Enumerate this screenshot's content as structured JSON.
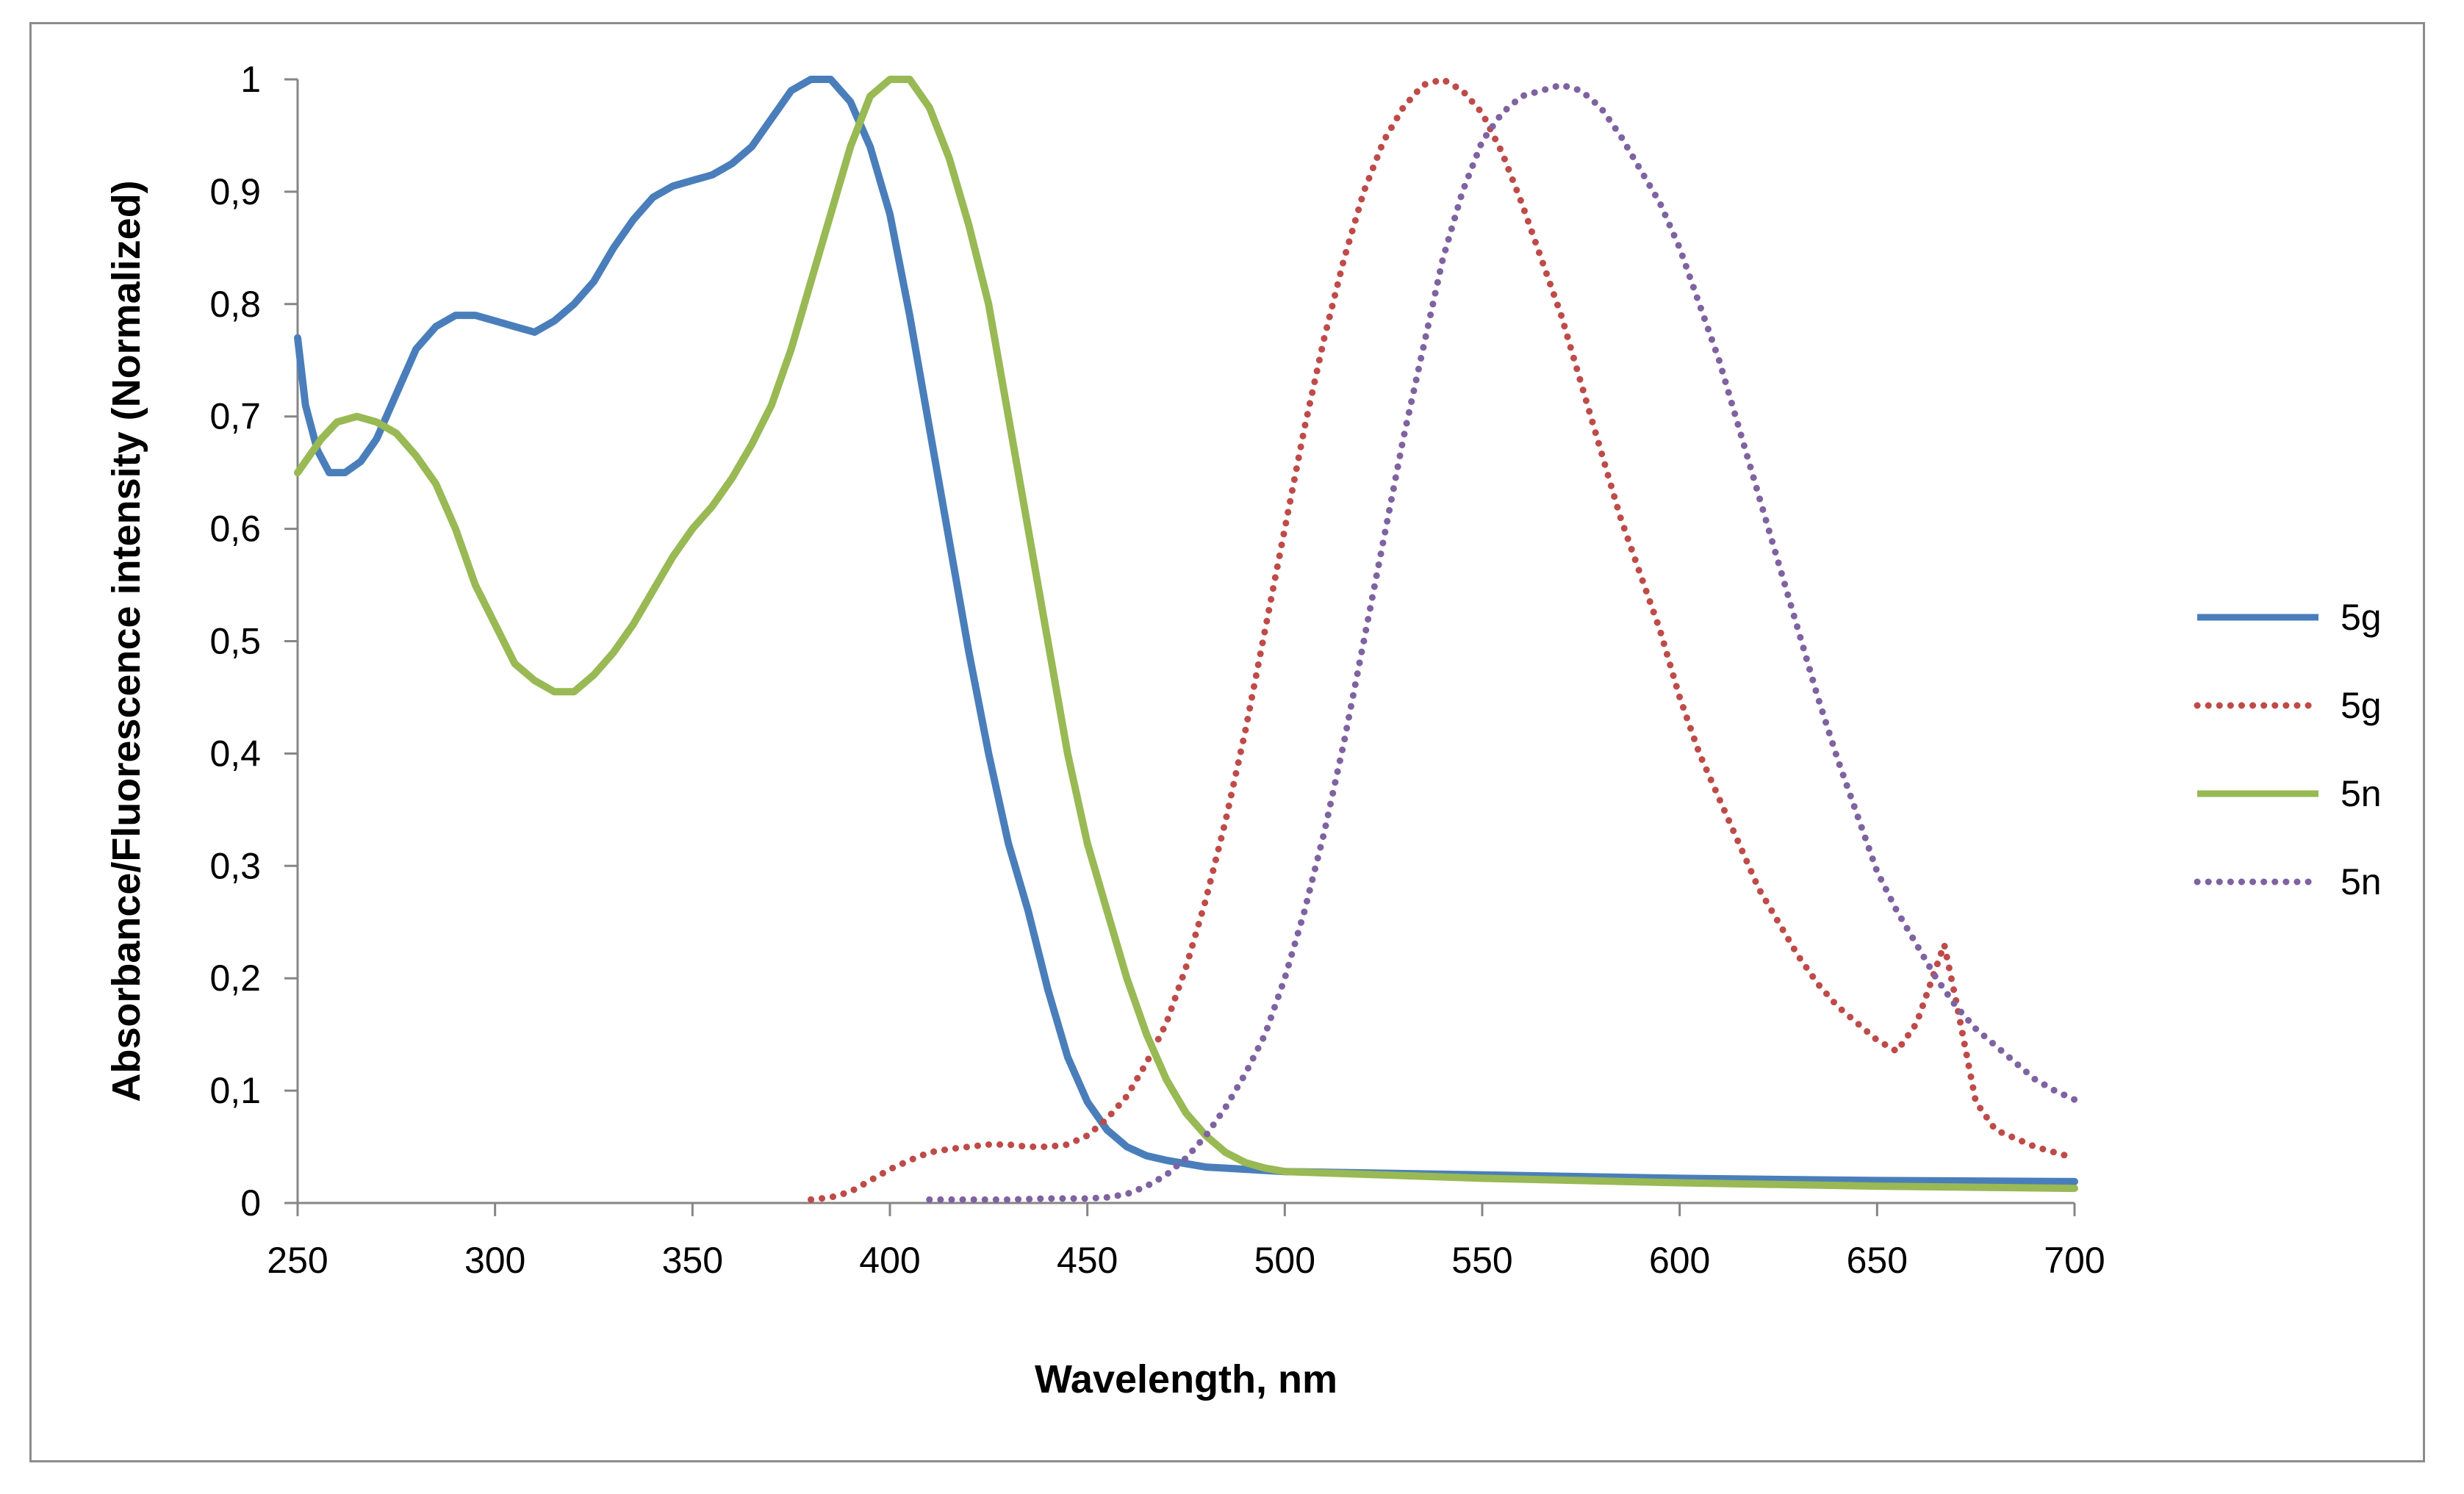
{
  "chart_data": {
    "type": "line",
    "title": "",
    "xlabel": "Wavelength, nm",
    "ylabel": "Absorbance/Fluorescence  intensity (Normalized)",
    "xlim": [
      250,
      700
    ],
    "ylim": [
      0,
      1
    ],
    "x_ticks": [
      "250",
      "300",
      "350",
      "400",
      "450",
      "500",
      "550",
      "600",
      "650",
      "700"
    ],
    "y_ticks": [
      "0",
      "0,1",
      "0,2",
      "0,3",
      "0,4",
      "0,5",
      "0,6",
      "0,7",
      "0,8",
      "0,9",
      "1"
    ],
    "grid": false,
    "legend_position": "right",
    "series": [
      {
        "name": "5g",
        "style": "solid",
        "color": "#4a7ebb",
        "x": [
          250,
          252,
          255,
          258,
          262,
          266,
          270,
          275,
          280,
          285,
          290,
          295,
          300,
          305,
          310,
          315,
          320,
          325,
          330,
          335,
          340,
          345,
          350,
          355,
          360,
          365,
          370,
          375,
          380,
          385,
          390,
          395,
          400,
          405,
          410,
          415,
          420,
          425,
          430,
          435,
          440,
          445,
          450,
          455,
          460,
          465,
          470,
          480,
          490,
          500,
          550,
          600,
          650,
          700
        ],
        "y": [
          0.77,
          0.71,
          0.67,
          0.65,
          0.65,
          0.66,
          0.68,
          0.72,
          0.76,
          0.78,
          0.79,
          0.79,
          0.785,
          0.78,
          0.775,
          0.785,
          0.8,
          0.82,
          0.85,
          0.875,
          0.895,
          0.905,
          0.91,
          0.915,
          0.925,
          0.94,
          0.965,
          0.99,
          1.0,
          1.0,
          0.98,
          0.94,
          0.88,
          0.79,
          0.69,
          0.59,
          0.49,
          0.4,
          0.32,
          0.26,
          0.19,
          0.13,
          0.09,
          0.065,
          0.05,
          0.042,
          0.038,
          0.032,
          0.03,
          0.028,
          0.025,
          0.022,
          0.02,
          0.019
        ]
      },
      {
        "name": "5g",
        "style": "dotted",
        "color": "#be4b48",
        "x": [
          380,
          385,
          390,
          395,
          400,
          405,
          410,
          415,
          420,
          425,
          430,
          435,
          440,
          445,
          450,
          455,
          460,
          465,
          470,
          475,
          480,
          485,
          490,
          495,
          500,
          505,
          510,
          515,
          520,
          525,
          530,
          535,
          540,
          545,
          550,
          555,
          560,
          565,
          570,
          575,
          580,
          585,
          590,
          595,
          600,
          605,
          610,
          615,
          620,
          625,
          630,
          635,
          640,
          645,
          650,
          655,
          660,
          665,
          667,
          670,
          675,
          680,
          690,
          700
        ],
        "y": [
          0.003,
          0.005,
          0.01,
          0.02,
          0.03,
          0.038,
          0.045,
          0.048,
          0.05,
          0.052,
          0.052,
          0.05,
          0.05,
          0.052,
          0.06,
          0.075,
          0.095,
          0.125,
          0.16,
          0.21,
          0.27,
          0.34,
          0.42,
          0.51,
          0.6,
          0.69,
          0.77,
          0.84,
          0.9,
          0.945,
          0.975,
          0.995,
          1.0,
          0.99,
          0.97,
          0.935,
          0.89,
          0.84,
          0.79,
          0.73,
          0.67,
          0.61,
          0.56,
          0.51,
          0.45,
          0.4,
          0.36,
          0.32,
          0.28,
          0.25,
          0.22,
          0.195,
          0.175,
          0.16,
          0.145,
          0.135,
          0.16,
          0.21,
          0.23,
          0.18,
          0.09,
          0.065,
          0.05,
          0.04
        ]
      },
      {
        "name": "5n",
        "style": "solid",
        "color": "#98b954",
        "x": [
          250,
          253,
          256,
          260,
          265,
          270,
          275,
          280,
          285,
          290,
          295,
          300,
          305,
          310,
          315,
          320,
          325,
          330,
          335,
          340,
          345,
          350,
          355,
          360,
          365,
          370,
          375,
          380,
          385,
          390,
          395,
          400,
          405,
          410,
          415,
          420,
          425,
          430,
          435,
          440,
          445,
          450,
          455,
          460,
          465,
          470,
          475,
          480,
          485,
          490,
          495,
          500,
          550,
          600,
          650,
          700
        ],
        "y": [
          0.65,
          0.665,
          0.68,
          0.695,
          0.7,
          0.695,
          0.685,
          0.665,
          0.64,
          0.6,
          0.55,
          0.515,
          0.48,
          0.465,
          0.455,
          0.455,
          0.47,
          0.49,
          0.515,
          0.545,
          0.575,
          0.6,
          0.62,
          0.645,
          0.675,
          0.71,
          0.76,
          0.82,
          0.88,
          0.94,
          0.985,
          1.0,
          1.0,
          0.975,
          0.93,
          0.87,
          0.8,
          0.7,
          0.6,
          0.5,
          0.4,
          0.32,
          0.26,
          0.2,
          0.15,
          0.11,
          0.08,
          0.06,
          0.045,
          0.036,
          0.031,
          0.028,
          0.022,
          0.018,
          0.015,
          0.013
        ]
      },
      {
        "name": "5n",
        "style": "dotted",
        "color": "#7f62a1",
        "x": [
          410,
          420,
          430,
          440,
          450,
          455,
          460,
          465,
          470,
          475,
          480,
          485,
          490,
          495,
          500,
          505,
          510,
          515,
          520,
          525,
          530,
          535,
          540,
          545,
          550,
          555,
          560,
          565,
          570,
          575,
          580,
          585,
          590,
          595,
          600,
          605,
          610,
          615,
          620,
          625,
          630,
          635,
          640,
          645,
          650,
          655,
          660,
          665,
          670,
          675,
          680,
          685,
          690,
          695,
          700
        ],
        "y": [
          0.003,
          0.003,
          0.003,
          0.004,
          0.004,
          0.005,
          0.008,
          0.015,
          0.025,
          0.04,
          0.06,
          0.085,
          0.115,
          0.15,
          0.2,
          0.26,
          0.33,
          0.41,
          0.5,
          0.59,
          0.68,
          0.76,
          0.84,
          0.9,
          0.945,
          0.97,
          0.985,
          0.99,
          0.995,
          0.99,
          0.975,
          0.95,
          0.92,
          0.89,
          0.85,
          0.8,
          0.75,
          0.69,
          0.63,
          0.57,
          0.51,
          0.45,
          0.395,
          0.345,
          0.295,
          0.26,
          0.23,
          0.2,
          0.175,
          0.155,
          0.14,
          0.125,
          0.11,
          0.1,
          0.092
        ]
      }
    ]
  }
}
